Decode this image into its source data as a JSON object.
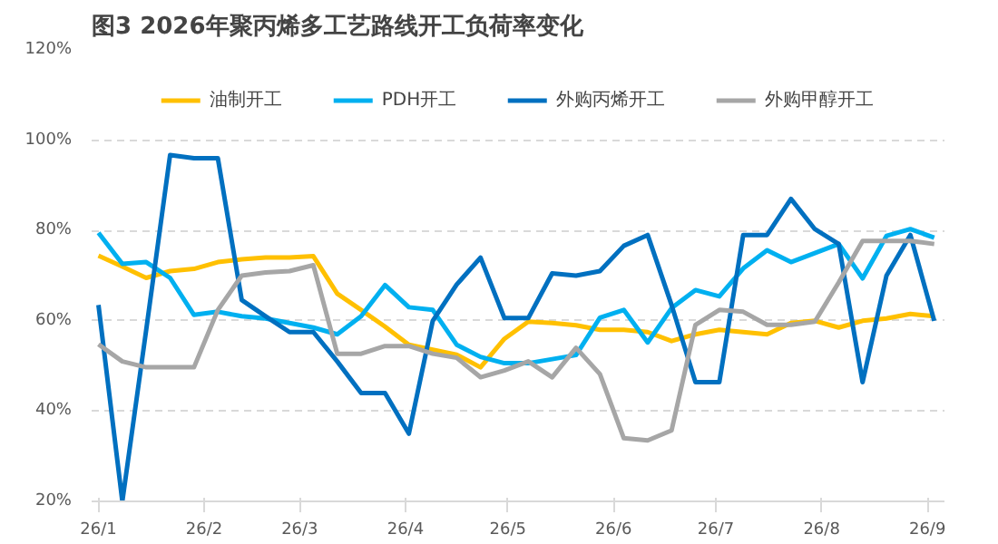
{
  "chart_data": {
    "type": "line",
    "title": "图3 2026年聚丙烯多工艺路线开工负荷率变化",
    "x": [
      "2026-01-01",
      "2026-01-08",
      "2026-01-15",
      "2026-01-22",
      "2026-01-29",
      "2026-02-05",
      "2026-02-12",
      "2026-02-19",
      "2026-02-26",
      "2026-03-05",
      "2026-03-12",
      "2026-03-19",
      "2026-03-26",
      "2026-04-02",
      "2026-04-09",
      "2026-04-16",
      "2026-04-23",
      "2026-04-30",
      "2026-05-07",
      "2026-05-14",
      "2026-05-21",
      "2026-05-28",
      "2026-06-04",
      "2026-06-11",
      "2026-06-18",
      "2026-06-25",
      "2026-07-02",
      "2026-07-09",
      "2026-07-16",
      "2026-07-23",
      "2026-07-30",
      "2026-08-06",
      "2026-08-13",
      "2026-08-20",
      "2026-08-27",
      "2026-09-03"
    ],
    "series": [
      {
        "name": "油制开工",
        "color": "#ffc000",
        "values": [
          74.4,
          72,
          69.5,
          71,
          71.5,
          73,
          73.6,
          74,
          74,
          74.3,
          66,
          62.4,
          58.7,
          54.7,
          53.6,
          52.5,
          49.7,
          56,
          59.8,
          59.5,
          59,
          58,
          58,
          57.5,
          55.5,
          57,
          58,
          57.5,
          57,
          59.5,
          60,
          58.5,
          60,
          60.5,
          61.5,
          61
        ]
      },
      {
        "name": "PDH开工",
        "color": "#00b0f0",
        "values": [
          79.5,
          72.6,
          73,
          69.5,
          61.3,
          62,
          61,
          60.5,
          59.5,
          58.5,
          57,
          61,
          67.9,
          63,
          62.4,
          54.7,
          52,
          50.6,
          50.6,
          51.5,
          52.4,
          60.7,
          62.4,
          55.2,
          62.8,
          66.8,
          65.4,
          71.6,
          75.6,
          73,
          75,
          77,
          69.4,
          78.8,
          80.3,
          78.4
        ]
      },
      {
        "name": "外购丙烯开工",
        "color": "#0070c0",
        "values": [
          63.5,
          20,
          58,
          96.7,
          96,
          96,
          64.6,
          61,
          57.5,
          57.5,
          51,
          44,
          44,
          35,
          60,
          68,
          74,
          60.6,
          60.6,
          70.5,
          70,
          71,
          76.6,
          79,
          63.5,
          46.4,
          46.4,
          79,
          79,
          87,
          80.3,
          77,
          46.4,
          70,
          79,
          60
        ]
      },
      {
        "name": "外购甲醇开工",
        "color": "#a6a6a6",
        "values": [
          54.8,
          51,
          49.7,
          49.7,
          49.7,
          62.4,
          70,
          70.7,
          71,
          72.3,
          52.7,
          52.7,
          54.4,
          54.4,
          52.7,
          51.8,
          47.5,
          49,
          51,
          47.5,
          54,
          48.2,
          34,
          33.5,
          35.7,
          59.1,
          62.4,
          62,
          59.1,
          59.1,
          59.8,
          68.5,
          77.7,
          77.7,
          77.7,
          77
        ]
      }
    ],
    "xlim": [
      "2025-12-30",
      "2026-09-06"
    ],
    "xticks": [
      {
        "value": "2026-01-01",
        "label": "26/1"
      },
      {
        "value": "2026-02-01",
        "label": "26/2"
      },
      {
        "value": "2026-03-01",
        "label": "26/3"
      },
      {
        "value": "2026-04-01",
        "label": "26/4"
      },
      {
        "value": "2026-05-01",
        "label": "26/5"
      },
      {
        "value": "2026-06-01",
        "label": "26/6"
      },
      {
        "value": "2026-07-01",
        "label": "26/7"
      },
      {
        "value": "2026-08-01",
        "label": "26/8"
      },
      {
        "value": "2026-09-01",
        "label": "26/9"
      }
    ],
    "ylim": [
      20,
      120
    ],
    "yticks": [
      {
        "value": 20,
        "label": "20%"
      },
      {
        "value": 40,
        "label": "40%"
      },
      {
        "value": 60,
        "label": "60%"
      },
      {
        "value": 80,
        "label": "80%"
      },
      {
        "value": 100,
        "label": "100%"
      },
      {
        "value": 120,
        "label": "120%"
      }
    ],
    "grid": "y",
    "legend": "top",
    "marker": "none",
    "line_style": "solid"
  }
}
